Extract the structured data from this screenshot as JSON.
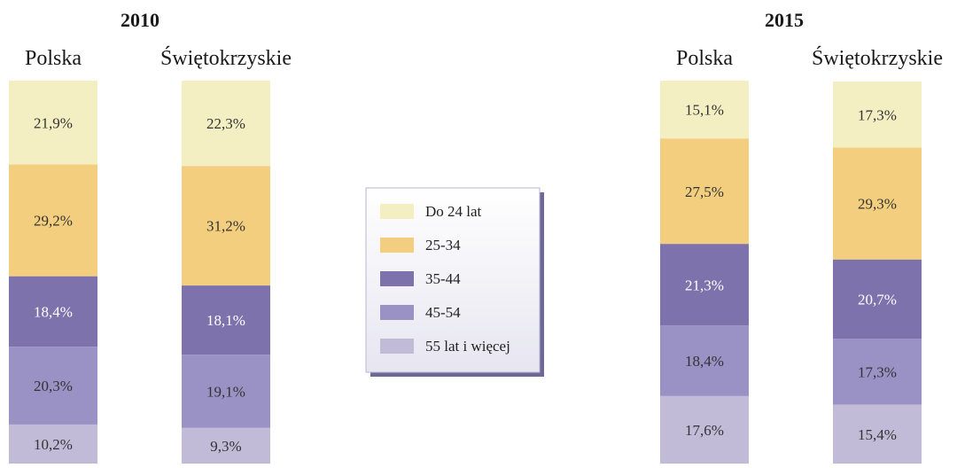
{
  "chart_data": {
    "type": "bar",
    "stacked": true,
    "normalized_percent": true,
    "unit": "%",
    "legend": {
      "placement": "center",
      "entries": [
        {
          "name": "Do 24 lat",
          "color": "#f4eec3"
        },
        {
          "name": "25-34",
          "color": "#f2ce7e"
        },
        {
          "name": "35-44",
          "color": "#7e72ad"
        },
        {
          "name": "45-54",
          "color": "#9a91c4"
        },
        {
          "name": "55 lat i więcej",
          "color": "#c2bbd8"
        }
      ]
    },
    "label_colors": [
      "#333333",
      "#333333",
      "#ffffff",
      "#333333",
      "#333333"
    ],
    "groups": [
      {
        "title": "2010",
        "bars": [
          {
            "name": "Polska",
            "values": [
              21.9,
              29.2,
              18.4,
              20.3,
              10.2
            ],
            "labels": [
              "21,9%",
              "29,2%",
              "18,4%",
              "20,3%",
              "10,2%"
            ]
          },
          {
            "name": "Świętokrzyskie",
            "values": [
              22.3,
              31.2,
              18.1,
              19.1,
              9.3
            ],
            "labels": [
              "22,3%",
              "31,2%",
              "18,1%",
              "19,1%",
              "9,3%"
            ]
          }
        ]
      },
      {
        "title": "2015",
        "bars": [
          {
            "name": "Polska",
            "values": [
              15.1,
              27.5,
              21.3,
              18.4,
              17.6
            ],
            "labels": [
              "15,1%",
              "27,5%",
              "21,3%",
              "18,4%",
              "17,6%"
            ]
          },
          {
            "name": "Świętokrzyskie",
            "values": [
              17.3,
              29.3,
              20.7,
              17.3,
              15.4
            ],
            "labels": [
              "17,3%",
              "29,3%",
              "20,7%",
              "17,3%",
              "15,4%"
            ]
          }
        ]
      }
    ]
  }
}
